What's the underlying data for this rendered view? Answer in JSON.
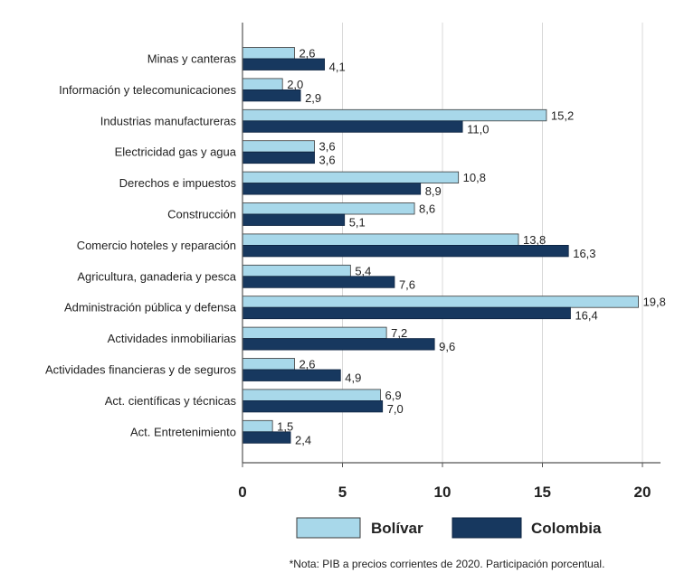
{
  "chart_data": {
    "type": "bar",
    "orientation": "horizontal",
    "categories": [
      "Minas y canteras",
      "Información y telecomunicaciones",
      "Industrias manufactureras",
      "Electricidad gas y agua",
      "Derechos e impuestos",
      "Construcción",
      "Comercio hoteles y reparación",
      "Agricultura, ganaderia y pesca",
      "Administración pública y defensa",
      "Actividades inmobiliarias",
      "Actividades financieras y de seguros",
      "Act. científicas y técnicas",
      "Act. Entretenimiento"
    ],
    "series": [
      {
        "name": "Bolívar",
        "color": "#a8d8ea",
        "values": [
          2.6,
          2.0,
          15.2,
          3.6,
          10.8,
          8.6,
          13.8,
          5.4,
          19.8,
          7.2,
          2.6,
          6.9,
          1.5
        ],
        "labels": [
          "2,6",
          "2,0",
          "15,2",
          "3,6",
          "10,8",
          "8,6",
          "13,8",
          "5,4",
          "19,8",
          "7,2",
          "2,6",
          "6,9",
          "1,5"
        ]
      },
      {
        "name": "Colombia",
        "color": "#17385f",
        "values": [
          4.1,
          2.9,
          11.0,
          3.6,
          8.9,
          5.1,
          16.3,
          7.6,
          16.4,
          9.6,
          4.9,
          7.0,
          2.4
        ],
        "labels": [
          "4,1",
          "2,9",
          "11,0",
          "3,6",
          "8,9",
          "5,1",
          "16,3",
          "7,6",
          "16,4",
          "9,6",
          "4,9",
          "7,0",
          "2,4"
        ]
      }
    ],
    "xlim": [
      0,
      20
    ],
    "xticks": [
      "0",
      "5",
      "10",
      "15",
      "20"
    ],
    "xtick_values": [
      0,
      5,
      10,
      15,
      20
    ],
    "grid": "vertical",
    "legend": "bottom",
    "note": "*Nota: PIB a precios corrientes de 2020. Participación porcentual."
  }
}
